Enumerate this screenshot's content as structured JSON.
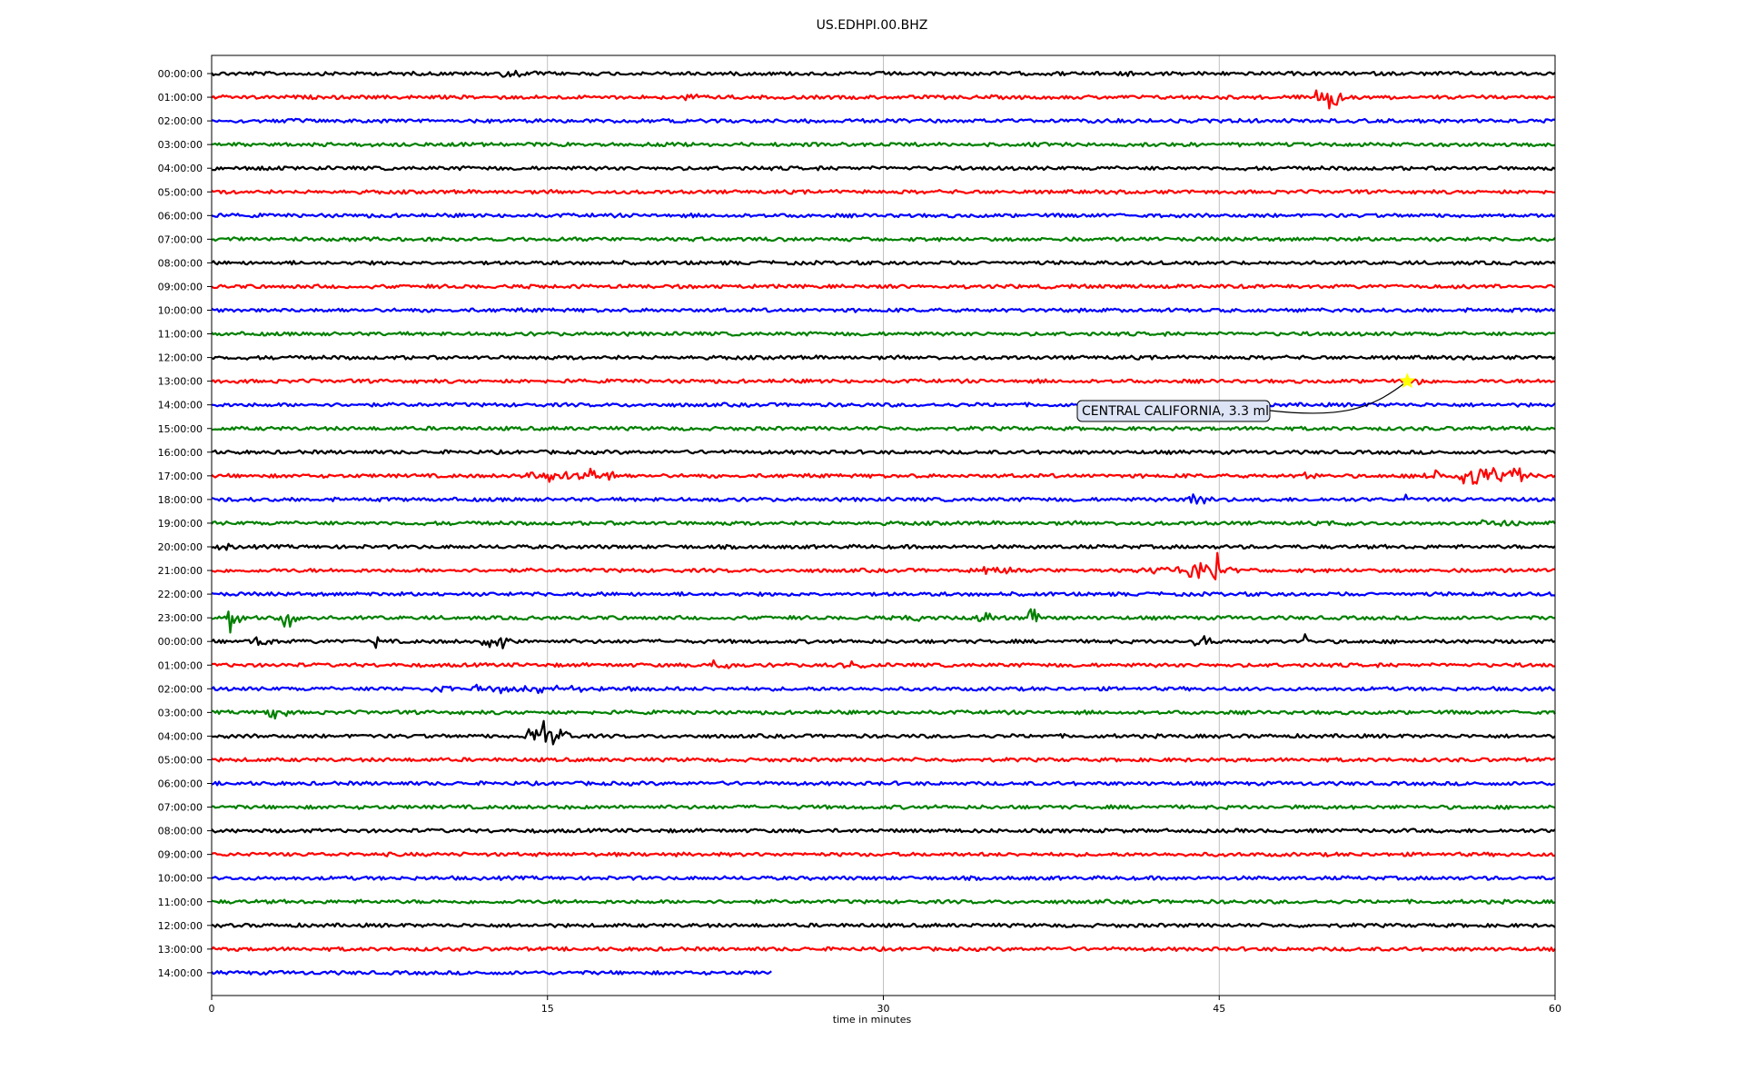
{
  "title": "US.EDHPI.00.BHZ",
  "xlabel": "time in minutes",
  "chart_data": {
    "type": "line",
    "title": "US.EDHPI.00.BHZ",
    "xlabel": "time in minutes",
    "ylabel": "",
    "xlim": [
      0,
      60
    ],
    "xticks": [
      0,
      15,
      30,
      45,
      60
    ],
    "grid": "vertical lines at x ticks",
    "colors": [
      "#000000",
      "#ff0000",
      "#0000ff",
      "#008000"
    ],
    "hours": [
      "00:00:00",
      "01:00:00",
      "02:00:00",
      "03:00:00",
      "04:00:00",
      "05:00:00",
      "06:00:00",
      "07:00:00",
      "08:00:00",
      "09:00:00",
      "10:00:00",
      "11:00:00",
      "12:00:00",
      "13:00:00",
      "14:00:00",
      "15:00:00",
      "16:00:00",
      "17:00:00",
      "18:00:00",
      "19:00:00",
      "20:00:00",
      "21:00:00",
      "22:00:00",
      "23:00:00",
      "00:00:00",
      "01:00:00",
      "02:00:00",
      "03:00:00",
      "04:00:00",
      "05:00:00",
      "06:00:00",
      "07:00:00",
      "08:00:00",
      "09:00:00",
      "10:00:00",
      "11:00:00",
      "12:00:00",
      "13:00:00",
      "14:00:00"
    ],
    "last_trace_end_minute": 25,
    "bursts": [
      {
        "row": 0,
        "start": 12.5,
        "end": 14.5,
        "amp": 0.35
      },
      {
        "row": 0,
        "start": 40.3,
        "end": 41.2,
        "amp": 0.45
      },
      {
        "row": 1,
        "start": 20.8,
        "end": 21.8,
        "amp": 0.45
      },
      {
        "row": 1,
        "start": 49.0,
        "end": 50.5,
        "amp": 0.8
      },
      {
        "row": 13,
        "start": 53.5,
        "end": 54.5,
        "amp": 0.3
      },
      {
        "row": 17,
        "start": 13.8,
        "end": 18.0,
        "amp": 0.7
      },
      {
        "row": 17,
        "start": 48.5,
        "end": 49.5,
        "amp": 0.5
      },
      {
        "row": 17,
        "start": 54.0,
        "end": 59.5,
        "amp": 0.6
      },
      {
        "row": 18,
        "start": 43.5,
        "end": 44.8,
        "amp": 1.0
      },
      {
        "row": 18,
        "start": 46.8,
        "end": 47.4,
        "amp": 0.4
      },
      {
        "row": 18,
        "start": 53.0,
        "end": 53.6,
        "amp": 0.35
      },
      {
        "row": 18,
        "start": 57.7,
        "end": 58.3,
        "amp": 0.3
      },
      {
        "row": 19,
        "start": 50.5,
        "end": 51.0,
        "amp": 0.35
      },
      {
        "row": 19,
        "start": 56.0,
        "end": 59.2,
        "amp": 0.3
      },
      {
        "row": 20,
        "start": 0.3,
        "end": 1.0,
        "amp": 0.4
      },
      {
        "row": 21,
        "start": 33.5,
        "end": 36.0,
        "amp": 0.3
      },
      {
        "row": 21,
        "start": 41.5,
        "end": 46.0,
        "amp": 0.45
      },
      {
        "row": 21,
        "start": 44.6,
        "end": 45.0,
        "amp": 1.8
      },
      {
        "row": 23,
        "start": 0.5,
        "end": 1.5,
        "amp": 1.1
      },
      {
        "row": 23,
        "start": 2.8,
        "end": 4.0,
        "amp": 0.8
      },
      {
        "row": 23,
        "start": 30.5,
        "end": 32.5,
        "amp": 0.3
      },
      {
        "row": 23,
        "start": 34.0,
        "end": 35.0,
        "amp": 0.5
      },
      {
        "row": 23,
        "start": 36.5,
        "end": 37.0,
        "amp": 1.2
      },
      {
        "row": 24,
        "start": 1.5,
        "end": 3.0,
        "amp": 0.3
      },
      {
        "row": 24,
        "start": 7.2,
        "end": 7.6,
        "amp": 0.7
      },
      {
        "row": 24,
        "start": 11.8,
        "end": 13.8,
        "amp": 0.45
      },
      {
        "row": 24,
        "start": 43.8,
        "end": 45.0,
        "amp": 0.45
      },
      {
        "row": 24,
        "start": 48.6,
        "end": 49.0,
        "amp": 0.6
      },
      {
        "row": 25,
        "start": 21.8,
        "end": 23.4,
        "amp": 0.35
      },
      {
        "row": 25,
        "start": 27.2,
        "end": 29.5,
        "amp": 0.3
      },
      {
        "row": 26,
        "start": 7.5,
        "end": 20.5,
        "amp": 0.25
      },
      {
        "row": 27,
        "start": 1.8,
        "end": 3.5,
        "amp": 0.4
      },
      {
        "row": 28,
        "start": 14.0,
        "end": 16.0,
        "amp": 1.0
      }
    ],
    "event": {
      "label": "CENTRAL CALIFORNIA, 3.3 ml",
      "row": 13,
      "minute": 53.4,
      "marker": "star",
      "marker_color": "#ffff00"
    }
  }
}
